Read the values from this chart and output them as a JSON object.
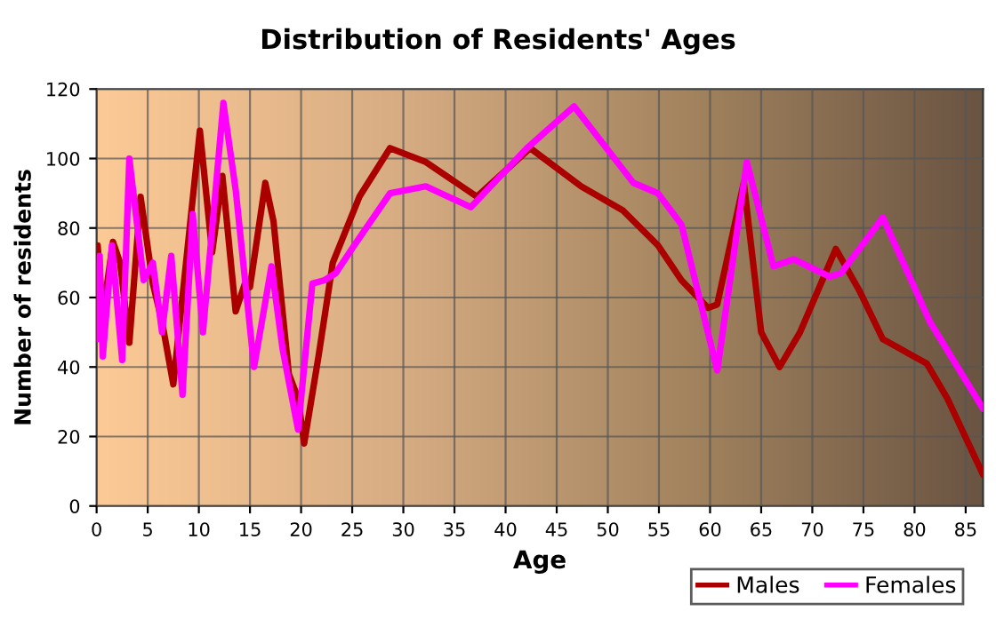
{
  "chart_data": {
    "type": "line",
    "title": "Distribution of Residents' Ages",
    "xlabel": "Age",
    "ylabel": "Number of residents",
    "xlim": [
      0,
      86.7
    ],
    "xticks": [
      0,
      5,
      10,
      15,
      20,
      25,
      30,
      35,
      40,
      45,
      50,
      55,
      60,
      65,
      70,
      75,
      80,
      85
    ],
    "ylim": [
      0,
      120
    ],
    "yticks": [
      0,
      20,
      40,
      60,
      80,
      100,
      120
    ],
    "grid": true,
    "legend": "bottom right",
    "series": [
      {
        "name": "Males",
        "color": "#aa0000",
        "x": [
          0,
          0.1,
          0.6,
          1.6,
          2.3,
          3.2,
          4.3,
          5.5,
          6.4,
          7.5,
          10.1,
          11.3,
          12.3,
          13.6,
          14.5,
          15,
          16.5,
          17.3,
          18.8,
          19.7,
          20.3,
          21.7,
          23.1,
          25.7,
          28.7,
          32.2,
          37.2,
          42.4,
          47.4,
          51.5,
          54.9,
          57.2,
          59.8,
          60.7,
          63.3,
          65,
          66.8,
          68.8,
          72.3,
          74.6,
          76.9,
          81.2,
          83.2,
          86.7
        ],
        "values": [
          48,
          75,
          55,
          76,
          70,
          47,
          89,
          64,
          53,
          35,
          108,
          73,
          95,
          56,
          64,
          63,
          93,
          82,
          38,
          31,
          18,
          43,
          70,
          89,
          103,
          99,
          89,
          103,
          92,
          85,
          75,
          65,
          57,
          58,
          93,
          50,
          40,
          50,
          74,
          62,
          48,
          41,
          31,
          9
        ]
      },
      {
        "name": "Females",
        "color": "#ff00ff",
        "x": [
          0,
          0.3,
          0.6,
          1.5,
          2.5,
          3.2,
          4.6,
          5.5,
          6.4,
          7.3,
          8.4,
          9.4,
          10.4,
          12.4,
          13.6,
          15.4,
          17.1,
          18.2,
          19.7,
          21.1,
          22.3,
          23.4,
          25.2,
          28.7,
          32.2,
          36.6,
          42.1,
          46.7,
          52.5,
          54.9,
          57.2,
          59.2,
          60.7,
          63.6,
          66.2,
          68.2,
          71.7,
          72.8,
          76.9,
          81.5,
          86.7
        ],
        "values": [
          48,
          72,
          43,
          75,
          42,
          100,
          65,
          70,
          50,
          72,
          32,
          84,
          50,
          116,
          91,
          40,
          69,
          45,
          22,
          64,
          65,
          67,
          75,
          90,
          92,
          86,
          103,
          115,
          93,
          90,
          81,
          57,
          39,
          99,
          69,
          71,
          66,
          67,
          83,
          53,
          28
        ]
      }
    ]
  }
}
